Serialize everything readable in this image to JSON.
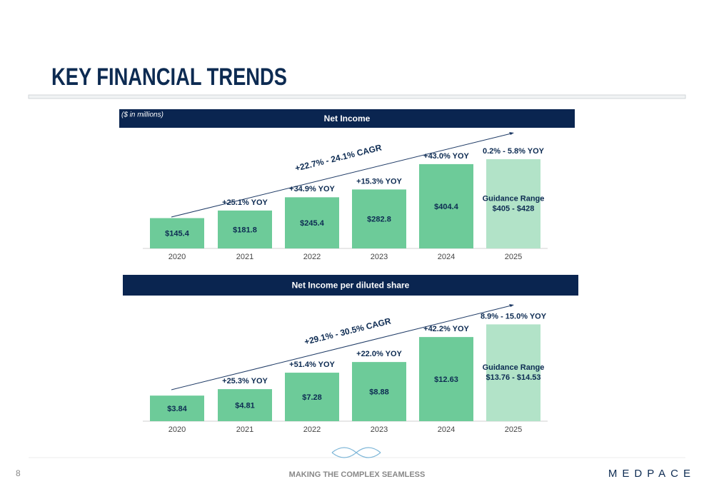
{
  "header": {
    "title": "KEY FINANCIAL TRENDS"
  },
  "chart_data": [
    {
      "type": "bar",
      "title": "Net Income",
      "note": "($ in millions)",
      "categories": [
        "2020",
        "2021",
        "2022",
        "2023",
        "2024",
        "2025"
      ],
      "values": [
        145.4,
        181.8,
        245.4,
        282.8,
        404.4,
        null
      ],
      "value_labels": [
        "$145.4",
        "$181.8",
        "$245.4",
        "$282.8",
        "$404.4",
        null
      ],
      "annotations": [
        null,
        "+25.1% YOY",
        "+34.9% YOY",
        "+15.3% YOY",
        "+43.0% YOY",
        "0.2% - 5.8% YOY"
      ],
      "cagr": "+22.7% - 24.1% CAGR",
      "guidance": {
        "label": "Guidance Range",
        "range_label": "$405 - $428",
        "low": 405,
        "high": 428
      },
      "color": "#6dcb99",
      "guidance_color": "#b2e3c8",
      "ylim": [
        0,
        500
      ]
    },
    {
      "type": "bar",
      "title": "Net Income per diluted share",
      "categories": [
        "2020",
        "2021",
        "2022",
        "2023",
        "2024",
        "2025"
      ],
      "values": [
        3.84,
        4.81,
        7.28,
        8.88,
        12.63,
        null
      ],
      "value_labels": [
        "$3.84",
        "$4.81",
        "$7.28",
        "$8.88",
        "$12.63",
        null
      ],
      "annotations": [
        null,
        "+25.3% YOY",
        "+51.4% YOY",
        "+22.0% YOY",
        "+42.2% YOY",
        "8.9% - 15.0% YOY"
      ],
      "cagr": "+29.1% - 30.5% CAGR",
      "guidance": {
        "label": "Guidance Range",
        "range_label": "$13.76 - $14.53",
        "low": 13.76,
        "high": 14.53
      },
      "color": "#6dcb99",
      "guidance_color": "#b2e3c8",
      "ylim": [
        0,
        15
      ]
    }
  ],
  "footer": {
    "page": "8",
    "tagline": "MAKING THE COMPLEX SEAMLESS",
    "logo": "MEDPACE"
  }
}
